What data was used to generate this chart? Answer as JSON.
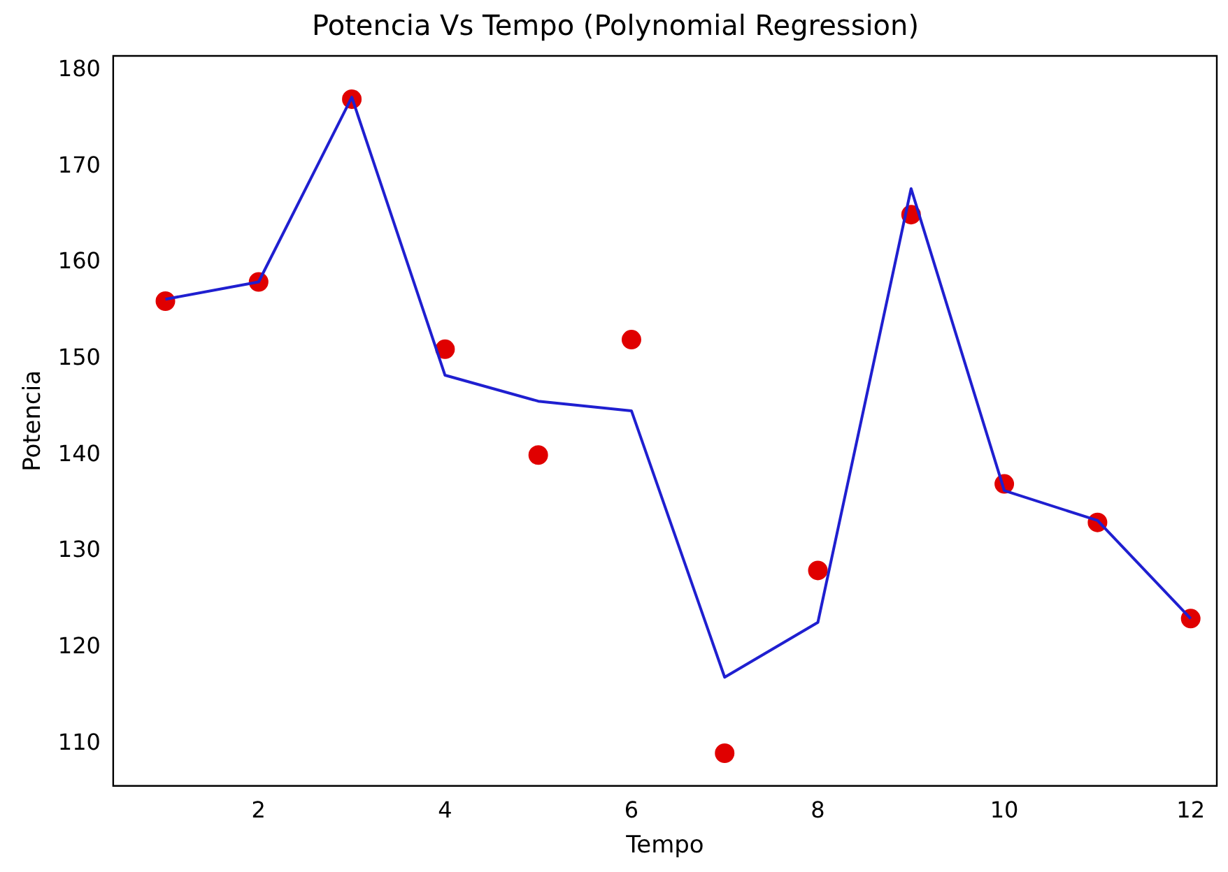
{
  "chart_data": {
    "type": "scatter",
    "title": "Potencia Vs Tempo (Polynomial Regression)",
    "xlabel": "Tempo",
    "ylabel": "Potencia",
    "x": [
      1,
      2,
      3,
      4,
      5,
      6,
      7,
      8,
      9,
      10,
      11,
      12
    ],
    "xlim": [
      0.44,
      12.28
    ],
    "xticks": [
      2,
      4,
      6,
      8,
      10,
      12
    ],
    "ylim": [
      105.6,
      181.5
    ],
    "yticks": [
      110,
      120,
      130,
      140,
      150,
      160,
      170,
      180
    ],
    "grid": false,
    "legend": false,
    "series": [
      {
        "color": "#e00000",
        "marker": "circle",
        "values": [
          156,
          158,
          177,
          151,
          140,
          152,
          109,
          128,
          165,
          137,
          133,
          123
        ]
      },
      {
        "type": "line",
        "color": "#1f1fd0",
        "marker": "none",
        "line_style": "solid",
        "values": [
          156.2,
          158,
          177.2,
          148.3,
          145.6,
          144.6,
          116.9,
          122.6,
          167.7,
          136.3,
          133.2,
          123
        ]
      }
    ]
  }
}
